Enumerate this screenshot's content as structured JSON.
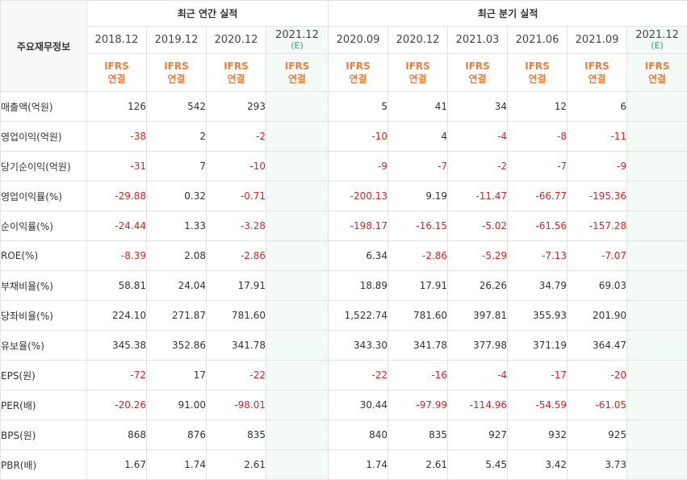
{
  "corner_label": "주요재무정보",
  "groups": {
    "annual_title": "최근 연간 실적",
    "quarter_title": "최근 분기 실적"
  },
  "annual_periods": [
    {
      "period": "2018.12",
      "estimate": ""
    },
    {
      "period": "2019.12",
      "estimate": ""
    },
    {
      "period": "2020.12",
      "estimate": ""
    },
    {
      "period": "2021.12",
      "estimate": "(E)"
    }
  ],
  "quarter_periods": [
    {
      "period": "2020.09",
      "estimate": ""
    },
    {
      "period": "2020.12",
      "estimate": ""
    },
    {
      "period": "2021.03",
      "estimate": ""
    },
    {
      "period": "2021.06",
      "estimate": ""
    },
    {
      "period": "2021.09",
      "estimate": ""
    },
    {
      "period": "2021.12",
      "estimate": "(E)"
    }
  ],
  "standard": {
    "line1": "IFRS",
    "line2": "연결"
  },
  "rows": [
    {
      "label": "매출액(억원)",
      "annual": [
        "126",
        "542",
        "293",
        ""
      ],
      "quarter": [
        "5",
        "41",
        "34",
        "12",
        "6",
        ""
      ]
    },
    {
      "label": "영업이익(억원)",
      "annual": [
        "-38",
        "2",
        "-2",
        ""
      ],
      "quarter": [
        "-10",
        "4",
        "-4",
        "-8",
        "-11",
        ""
      ]
    },
    {
      "label": "당기순이익(억원)",
      "annual": [
        "-31",
        "7",
        "-10",
        ""
      ],
      "quarter": [
        "-9",
        "-7",
        "-2",
        "-7",
        "-9",
        ""
      ]
    },
    {
      "label": "영업이익률(%)",
      "annual": [
        "-29.88",
        "0.32",
        "-0.71",
        ""
      ],
      "quarter": [
        "-200.13",
        "9.19",
        "-11.47",
        "-66.77",
        "-195.36",
        ""
      ]
    },
    {
      "label": "순이익률(%)",
      "annual": [
        "-24.44",
        "1.33",
        "-3.28",
        ""
      ],
      "quarter": [
        "-198.17",
        "-16.15",
        "-5.02",
        "-61.56",
        "-157.28",
        ""
      ]
    },
    {
      "label": "ROE(%)",
      "annual": [
        "-8.39",
        "2.08",
        "-2.86",
        ""
      ],
      "quarter": [
        "6.34",
        "-2.86",
        "-5.29",
        "-7.13",
        "-7.07",
        ""
      ]
    },
    {
      "label": "부채비율(%)",
      "annual": [
        "58.81",
        "24.04",
        "17.91",
        ""
      ],
      "quarter": [
        "18.89",
        "17.91",
        "26.26",
        "34.79",
        "69.03",
        ""
      ]
    },
    {
      "label": "당좌비율(%)",
      "annual": [
        "224.10",
        "271.87",
        "781.60",
        ""
      ],
      "quarter": [
        "1,522.74",
        "781.60",
        "397.81",
        "355.93",
        "201.90",
        ""
      ]
    },
    {
      "label": "유보율(%)",
      "annual": [
        "345.38",
        "352.86",
        "341.78",
        ""
      ],
      "quarter": [
        "343.30",
        "341.78",
        "377.98",
        "371.19",
        "364.47",
        ""
      ]
    },
    {
      "label": "EPS(원)",
      "annual": [
        "-72",
        "17",
        "-22",
        ""
      ],
      "quarter": [
        "-22",
        "-16",
        "-4",
        "-17",
        "-20",
        ""
      ]
    },
    {
      "label": "PER(배)",
      "annual": [
        "-20.26",
        "91.00",
        "-98.01",
        ""
      ],
      "quarter": [
        "30.44",
        "-97.99",
        "-114.96",
        "-54.59",
        "-61.05",
        ""
      ]
    },
    {
      "label": "BPS(원)",
      "annual": [
        "868",
        "876",
        "835",
        ""
      ],
      "quarter": [
        "840",
        "835",
        "927",
        "932",
        "925",
        ""
      ]
    },
    {
      "label": "PBR(배)",
      "annual": [
        "1.67",
        "1.74",
        "2.61",
        ""
      ],
      "quarter": [
        "1.74",
        "2.61",
        "5.45",
        "3.42",
        "3.73",
        ""
      ]
    }
  ],
  "colors": {
    "negative": "#e02020",
    "standard_label": "#f07d3c",
    "estimate_text": "#33a26a",
    "estimate_bg": "#f4faf6"
  }
}
